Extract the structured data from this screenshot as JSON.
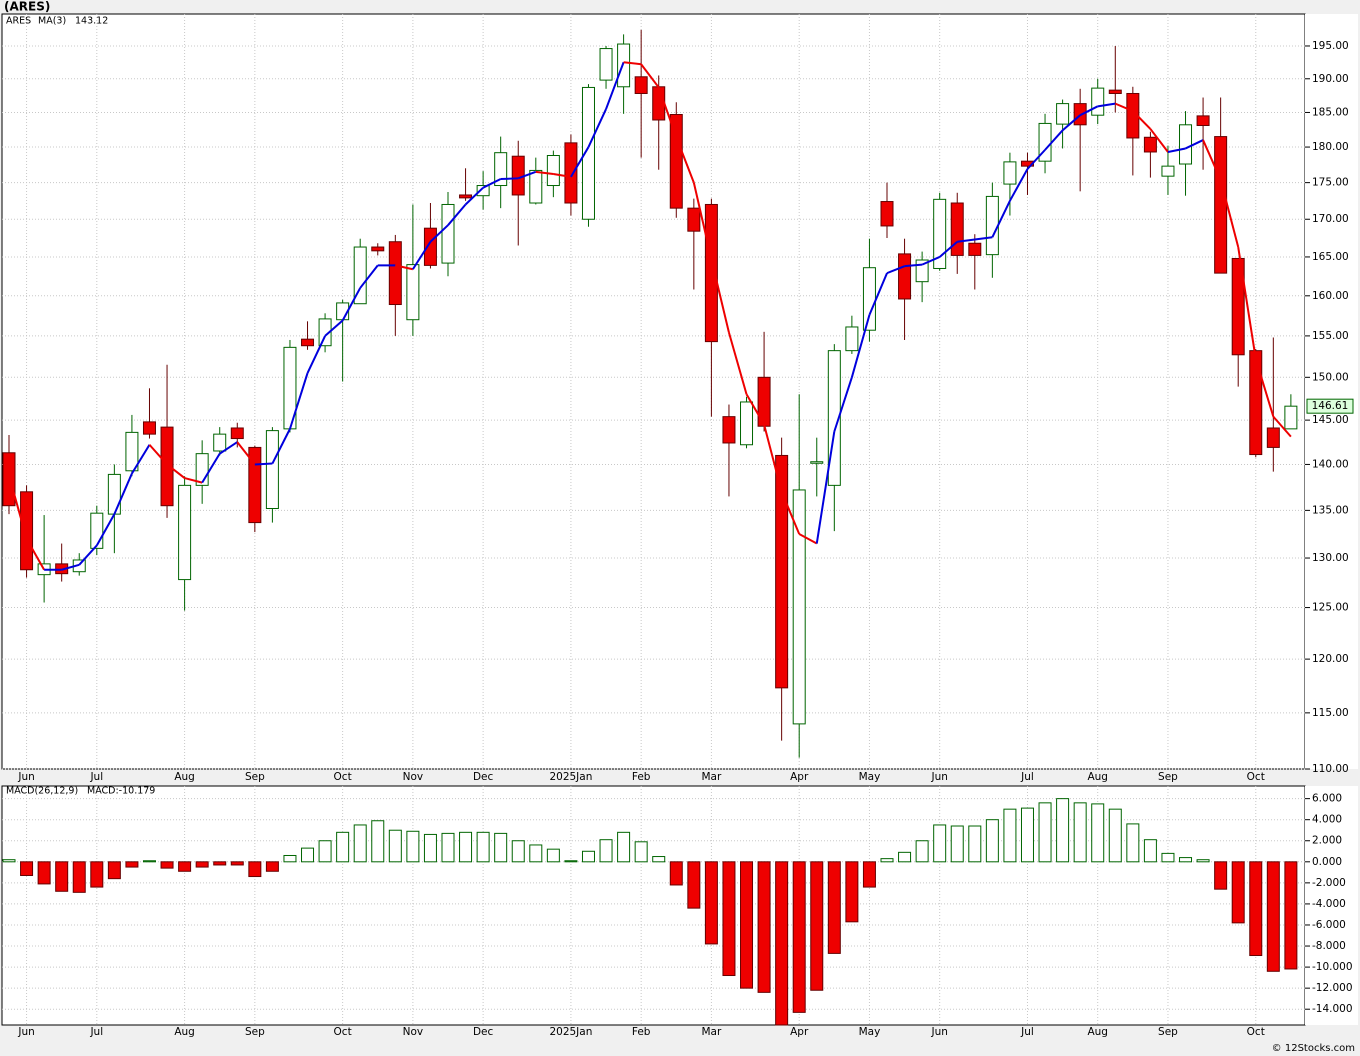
{
  "chart_data": [
    {
      "type": "candlestick",
      "title": "(ARES)",
      "log_scale": true,
      "grid": true,
      "categories": [
        null,
        "Jun",
        null,
        null,
        null,
        "Jul",
        null,
        null,
        null,
        null,
        "Aug",
        null,
        null,
        null,
        "Sep",
        null,
        null,
        null,
        null,
        "Oct",
        null,
        null,
        null,
        "Nov",
        null,
        null,
        null,
        "Dec",
        null,
        null,
        null,
        null,
        "2025Jan",
        null,
        null,
        null,
        "Feb",
        null,
        null,
        null,
        "Mar",
        null,
        null,
        null,
        null,
        "Apr",
        null,
        null,
        null,
        "May",
        null,
        null,
        null,
        "Jun",
        null,
        null,
        null,
        null,
        "Jul",
        null,
        null,
        null,
        "Aug",
        null,
        null,
        null,
        "Sep",
        null,
        null,
        null,
        null,
        "Oct",
        null,
        null
      ],
      "ylim": [
        110,
        200
      ],
      "yticks": [
        {
          "value": 110,
          "label": "110.00"
        },
        {
          "value": 115,
          "label": "115.00"
        },
        {
          "value": 120,
          "label": "120.00"
        },
        {
          "value": 125,
          "label": "125.00"
        },
        {
          "value": 130,
          "label": "130.00"
        },
        {
          "value": 135,
          "label": "135.00"
        },
        {
          "value": 140,
          "label": "140.00"
        },
        {
          "value": 145,
          "label": "145.00"
        },
        {
          "value": 150,
          "label": "150.00"
        },
        {
          "value": 155,
          "label": "155.00"
        },
        {
          "value": 160,
          "label": "160.00"
        },
        {
          "value": 165,
          "label": "165.00"
        },
        {
          "value": 170,
          "label": "170.00"
        },
        {
          "value": 175,
          "label": "175.00"
        },
        {
          "value": 180,
          "label": "180.00"
        },
        {
          "value": 185,
          "label": "185.00"
        },
        {
          "value": 190,
          "label": "190.00"
        },
        {
          "value": 195,
          "label": "195.00"
        }
      ],
      "series": [
        {
          "name": "ARES",
          "color": "#006400",
          "down_color": "#ee0000",
          "open": [
            141.3,
            137,
            128.3,
            129.4,
            128.6,
            131,
            134.6,
            139.3,
            144.8,
            144.2,
            127.8,
            137.7,
            141.5,
            144.1,
            141.9,
            135.2,
            144,
            154.6,
            153.8,
            157,
            159,
            166.3,
            167,
            157,
            168.8,
            164.2,
            173.3,
            173.2,
            174.6,
            178.7,
            172.2,
            174.6,
            180.6,
            170,
            189.8,
            188.8,
            190.3,
            188.8,
            184.7,
            171.5,
            172,
            145.4,
            142.2,
            150,
            141,
            114,
            140.2,
            137.7,
            153.2,
            155.7,
            172.4,
            165.4,
            161.8,
            163.5,
            172.2,
            166.8,
            165.3,
            174.8,
            178,
            178,
            183.3,
            186.3,
            184.6,
            188.3,
            187.8,
            181.4,
            175.9,
            177.6,
            184.5,
            181.5,
            164.8,
            153.2,
            144.1,
            144
          ],
          "high": [
            143.3,
            137.7,
            134.5,
            131.5,
            130.5,
            135.5,
            140,
            145.6,
            148.7,
            151.5,
            138.7,
            142.7,
            144.2,
            144.7,
            142.1,
            144.2,
            154.5,
            156.8,
            157.8,
            159.5,
            167.4,
            166.8,
            167.9,
            172,
            172.2,
            173.7,
            177,
            176.6,
            181.5,
            180.9,
            178.5,
            179.5,
            181.8,
            189.2,
            195,
            196.8,
            197.5,
            190.5,
            186.5,
            172.8,
            172.8,
            146.8,
            147.7,
            155.5,
            143,
            148,
            143,
            154,
            157.5,
            167.4,
            175,
            167.4,
            165.7,
            173.6,
            173.6,
            168,
            175,
            179.2,
            179.2,
            184.8,
            186.9,
            188.5,
            190,
            195,
            188.8,
            182.2,
            180.2,
            185.2,
            187.2,
            187.2,
            164.8,
            153.4,
            154.8,
            148
          ],
          "low": [
            134.6,
            128,
            125.5,
            127.6,
            128.2,
            130.3,
            130.5,
            138.7,
            142.9,
            134.2,
            124.7,
            135.7,
            141,
            141.9,
            132.7,
            133.7,
            143.6,
            153.3,
            153,
            149.5,
            159,
            165.2,
            155,
            155,
            163.5,
            162.5,
            172.5,
            171.3,
            171.5,
            166.5,
            172,
            173,
            170.5,
            169,
            188.5,
            184.8,
            178.5,
            176.8,
            170.2,
            160.8,
            145.4,
            136.5,
            141.8,
            143.7,
            112.5,
            111,
            136.5,
            132.8,
            152.8,
            154.3,
            167.5,
            154.5,
            159.2,
            163.2,
            162.8,
            160.8,
            162.3,
            170.5,
            173.3,
            176.3,
            179.8,
            173.8,
            183.3,
            185,
            176,
            175.7,
            173.3,
            173.2,
            176.8,
            162.9,
            148.9,
            140.8,
            139.2,
            144
          ],
          "close": [
            135.5,
            128.8,
            129.4,
            128.4,
            129.8,
            134.7,
            138.9,
            143.6,
            143.4,
            135.5,
            137.7,
            141.2,
            143.4,
            142.9,
            133.7,
            143.8,
            153.6,
            153.8,
            157.1,
            159.1,
            166.3,
            165.8,
            158.9,
            164,
            163.9,
            172,
            172.9,
            174.6,
            179.2,
            173.3,
            176.7,
            178.8,
            172.2,
            188.7,
            194.6,
            195.3,
            187.8,
            183.9,
            171.5,
            168.4,
            154.3,
            142.4,
            147.1,
            144.3,
            117.3,
            137.2,
            140.3,
            153.2,
            156.1,
            163.6,
            169.1,
            159.6,
            164.6,
            172.7,
            165.2,
            165.2,
            173.1,
            177.9,
            177.3,
            183.4,
            186.3,
            183.2,
            188.6,
            187.8,
            181.3,
            179.3,
            177.3,
            183.2,
            183.1,
            162.9,
            152.7,
            141.1,
            141.9,
            146.61
          ]
        },
        {
          "name": "MA(3)",
          "type": "line",
          "color": "#0000dd",
          "down_color": "#ee0000",
          "values": [
            138.8,
            132,
            128.8,
            128.8,
            129.3,
            131.3,
            134.6,
            139,
            142.2,
            140,
            138.5,
            138,
            141.2,
            142.5,
            140,
            140.1,
            144,
            150.5,
            155,
            156.9,
            161,
            163.9,
            163.9,
            163.4,
            167,
            169.2,
            172,
            174.3,
            175.5,
            175.6,
            176.5,
            176.2,
            175.8,
            180,
            185.5,
            192.5,
            192.2,
            188.7,
            181.4,
            175,
            164.7,
            155.4,
            148,
            144.5,
            137,
            132.5,
            131.5,
            143.7,
            150,
            157.6,
            162.9,
            163.8,
            164,
            165,
            167,
            167.3,
            167.6,
            172.5,
            176.9,
            179.6,
            182.4,
            184.6,
            185.9,
            186.3,
            185.2,
            182.6,
            179.3,
            179.8,
            181,
            175.4,
            166.3,
            152.2,
            145.4,
            143.12
          ]
        }
      ]
    },
    {
      "type": "bar",
      "title": "MACD(26,12,9)",
      "readout": "MACD:-10.179",
      "grid": true,
      "categories": [
        null,
        "Jun",
        null,
        null,
        null,
        "Jul",
        null,
        null,
        null,
        null,
        "Aug",
        null,
        null,
        null,
        "Sep",
        null,
        null,
        null,
        null,
        "Oct",
        null,
        null,
        null,
        "Nov",
        null,
        null,
        null,
        "Dec",
        null,
        null,
        null,
        null,
        "2025Jan",
        null,
        null,
        null,
        "Feb",
        null,
        null,
        null,
        "Mar",
        null,
        null,
        null,
        null,
        "Apr",
        null,
        null,
        null,
        "May",
        null,
        null,
        null,
        "Jun",
        null,
        null,
        null,
        null,
        "Jul",
        null,
        null,
        null,
        "Aug",
        null,
        null,
        null,
        "Sep",
        null,
        null,
        null,
        null,
        "Oct",
        null,
        null
      ],
      "ylim": [
        -15.5,
        7.2
      ],
      "yticks": [
        {
          "value": 6,
          "label": "6.000"
        },
        {
          "value": 4,
          "label": "4.000"
        },
        {
          "value": 2,
          "label": "2.000"
        },
        {
          "value": 0,
          "label": "0.000"
        },
        {
          "value": -2,
          "label": "-2.000"
        },
        {
          "value": -4,
          "label": "-4.000"
        },
        {
          "value": -6,
          "label": "-6.000"
        },
        {
          "value": -8,
          "label": "-8.000"
        },
        {
          "value": -10,
          "label": "-10.000"
        },
        {
          "value": -12,
          "label": "-12.000"
        },
        {
          "value": -14,
          "label": "-14.000"
        }
      ],
      "series": [
        {
          "name": "MACD",
          "color": "#006400",
          "down_color": "#ee0000",
          "values": [
            0.2,
            -1.3,
            -2.1,
            -2.8,
            -2.9,
            -2.4,
            -1.6,
            -0.5,
            0.1,
            -0.6,
            -0.9,
            -0.5,
            -0.3,
            -0.3,
            -1.4,
            -0.9,
            0.6,
            1.3,
            2.0,
            2.8,
            3.5,
            3.9,
            3.0,
            2.9,
            2.6,
            2.7,
            2.8,
            2.8,
            2.7,
            2.0,
            1.6,
            1.2,
            0.1,
            1.0,
            2.1,
            2.8,
            1.9,
            0.5,
            -2.2,
            -4.4,
            -7.8,
            -10.8,
            -12.0,
            -12.4,
            -15.5,
            -14.3,
            -12.2,
            -8.7,
            -5.7,
            -2.4,
            0.3,
            0.9,
            2.0,
            3.5,
            3.4,
            3.4,
            4.0,
            5.0,
            5.1,
            5.6,
            6.0,
            5.6,
            5.5,
            5.0,
            3.6,
            2.1,
            0.8,
            0.4,
            0.2,
            -2.6,
            -5.8,
            -8.9,
            -10.4,
            -10.179
          ]
        }
      ]
    }
  ],
  "footer": "© 12Stocks.com"
}
